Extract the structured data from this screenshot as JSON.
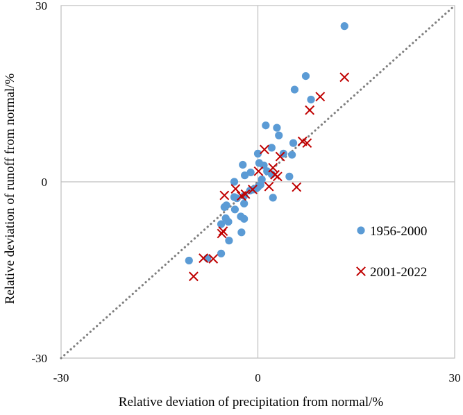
{
  "chart_data": {
    "type": "scatter",
    "xlabel": "Relative deviation of precipitation from normal/%",
    "ylabel": "Relative deviation of runoff from normal/%",
    "xlim": [
      -30,
      30
    ],
    "ylim": [
      -30,
      30
    ],
    "x_ticks": [
      "-30",
      "0",
      "30"
    ],
    "y_ticks": [
      "30",
      "0",
      "-30"
    ],
    "grid": false,
    "zero_lines": true,
    "reference_line": {
      "type": "1:1",
      "style": "dotted",
      "color": "#808080"
    },
    "legend_position": "right",
    "colors": {
      "series_1956_2000": "#5B9BD5",
      "series_2001_2022": "#C00000",
      "frame": "#BFBFBF"
    },
    "series": [
      {
        "name": "1956-2000",
        "marker": "circle",
        "points": [
          [
            13.2,
            26.5
          ],
          [
            7.3,
            18.0
          ],
          [
            5.6,
            15.7
          ],
          [
            8.1,
            14.0
          ],
          [
            1.2,
            9.6
          ],
          [
            2.9,
            9.2
          ],
          [
            3.2,
            7.9
          ],
          [
            5.4,
            6.6
          ],
          [
            2.1,
            5.8
          ],
          [
            0.0,
            4.8
          ],
          [
            3.9,
            4.8
          ],
          [
            5.2,
            4.6
          ],
          [
            0.2,
            3.2
          ],
          [
            0.9,
            2.8
          ],
          [
            -2.3,
            2.9
          ],
          [
            -1.1,
            1.6
          ],
          [
            1.4,
            1.8
          ],
          [
            2.1,
            1.3
          ],
          [
            4.8,
            0.9
          ],
          [
            -2.0,
            1.1
          ],
          [
            0.6,
            0.4
          ],
          [
            0.4,
            -0.5
          ],
          [
            0.0,
            -0.9
          ],
          [
            -0.7,
            -1.3
          ],
          [
            -0.2,
            -1.1
          ],
          [
            -1.2,
            -1.5
          ],
          [
            -3.6,
            0.0
          ],
          [
            -2.1,
            -2.4
          ],
          [
            -3.2,
            -2.8
          ],
          [
            -3.6,
            -2.6
          ],
          [
            -2.1,
            -3.7
          ],
          [
            -3.5,
            -4.7
          ],
          [
            -4.8,
            -4.0
          ],
          [
            -5.1,
            -4.3
          ],
          [
            2.3,
            -2.7
          ],
          [
            -2.6,
            -5.9
          ],
          [
            -2.1,
            -6.3
          ],
          [
            -4.9,
            -6.2
          ],
          [
            -4.5,
            -6.8
          ],
          [
            -5.6,
            -7.2
          ],
          [
            -2.5,
            -8.6
          ],
          [
            -4.4,
            -10.0
          ],
          [
            -5.6,
            -12.2
          ],
          [
            -7.7,
            -13.0
          ],
          [
            -10.5,
            -13.4
          ]
        ]
      },
      {
        "name": "2001-2022",
        "marker": "x",
        "points": [
          [
            13.2,
            17.8
          ],
          [
            9.5,
            14.5
          ],
          [
            7.9,
            12.2
          ],
          [
            7.5,
            6.6
          ],
          [
            6.8,
            6.9
          ],
          [
            1.0,
            5.5
          ],
          [
            3.4,
            4.3
          ],
          [
            2.3,
            2.4
          ],
          [
            0.1,
            1.8
          ],
          [
            2.6,
            1.2
          ],
          [
            3.0,
            0.9
          ],
          [
            1.7,
            -0.8
          ],
          [
            5.9,
            -0.9
          ],
          [
            -0.8,
            -1.3
          ],
          [
            -3.4,
            -1.2
          ],
          [
            -1.9,
            -2.1
          ],
          [
            -2.5,
            -2.4
          ],
          [
            -5.1,
            -2.3
          ],
          [
            -5.3,
            -8.4
          ],
          [
            -5.5,
            -8.8
          ],
          [
            -6.8,
            -13.1
          ],
          [
            -8.3,
            -13.0
          ],
          [
            -9.8,
            -16.1
          ]
        ]
      }
    ]
  }
}
